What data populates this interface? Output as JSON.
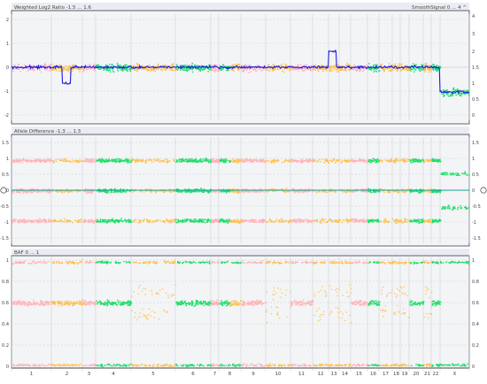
{
  "colors": {
    "background": "#ffffff",
    "panel_background": "#f3f4f6",
    "grid_dashed": "#c9ced6",
    "grid_solid": "#b8bec8",
    "frame": "#3a3f47",
    "header": "#e9ecf1",
    "pink": "#ffb3b8",
    "orange": "#ffc04d",
    "green": "#1fde6a",
    "blue": "#1a1ae6",
    "teal": "#10a29a",
    "text": "#444444"
  },
  "panels": {
    "top": {
      "label": "Weighted Log2 Ratio -1.5 ... 1.6",
      "right_label": "SmoothSignal 0 ... 4 ^",
      "left_ticks": [
        "2",
        "1",
        "0",
        "-1",
        "-2"
      ],
      "right_ticks": [
        "4",
        "3",
        "2",
        "1.5",
        "1",
        "0.5",
        "0"
      ]
    },
    "middle": {
      "label": "Allele Difference -1.3 ... 1.3",
      "left_ticks": [
        "1.5",
        "1",
        "0.5",
        "0",
        "-0.5",
        "-1",
        "-1.5"
      ],
      "right_ticks": [
        "1.5",
        "1",
        "0.5",
        "0",
        "-0.5",
        "-1",
        "-1.5"
      ]
    },
    "bottom": {
      "label": "BAF 0 ... 1",
      "left_ticks": [
        "1",
        "0.8",
        "0.6",
        "0.4",
        "0.2",
        "0"
      ],
      "right_ticks": [
        "1",
        "0.8",
        "0.6",
        "0.4",
        "0.2",
        "0"
      ]
    }
  },
  "chromosomes": [
    {
      "label": "1",
      "state": "normal"
    },
    {
      "label": "2",
      "state": "gain_lr"
    },
    {
      "label": "3",
      "state": "normal"
    },
    {
      "label": "4",
      "state": "normal"
    },
    {
      "label": "5",
      "state": "loh"
    },
    {
      "label": "6",
      "state": "normal"
    },
    {
      "label": "7",
      "state": "normal"
    },
    {
      "label": "8",
      "state": "mixed"
    },
    {
      "label": "9",
      "state": "normal"
    },
    {
      "label": "10",
      "state": "loh"
    },
    {
      "label": "11",
      "state": "normal"
    },
    {
      "label": "12",
      "state": "loh"
    },
    {
      "label": "13",
      "state": "gain"
    },
    {
      "label": "14",
      "state": "loh"
    },
    {
      "label": "15",
      "state": "normal"
    },
    {
      "label": "16",
      "state": "normal"
    },
    {
      "label": "17",
      "state": "loh"
    },
    {
      "label": "18",
      "state": "gain"
    },
    {
      "label": "19",
      "state": "loh"
    },
    {
      "label": "20",
      "state": "normal"
    },
    {
      "label": "21",
      "state": "loh"
    },
    {
      "label": "22",
      "state": "normal"
    },
    {
      "label": "X",
      "state": "loss"
    }
  ]
}
